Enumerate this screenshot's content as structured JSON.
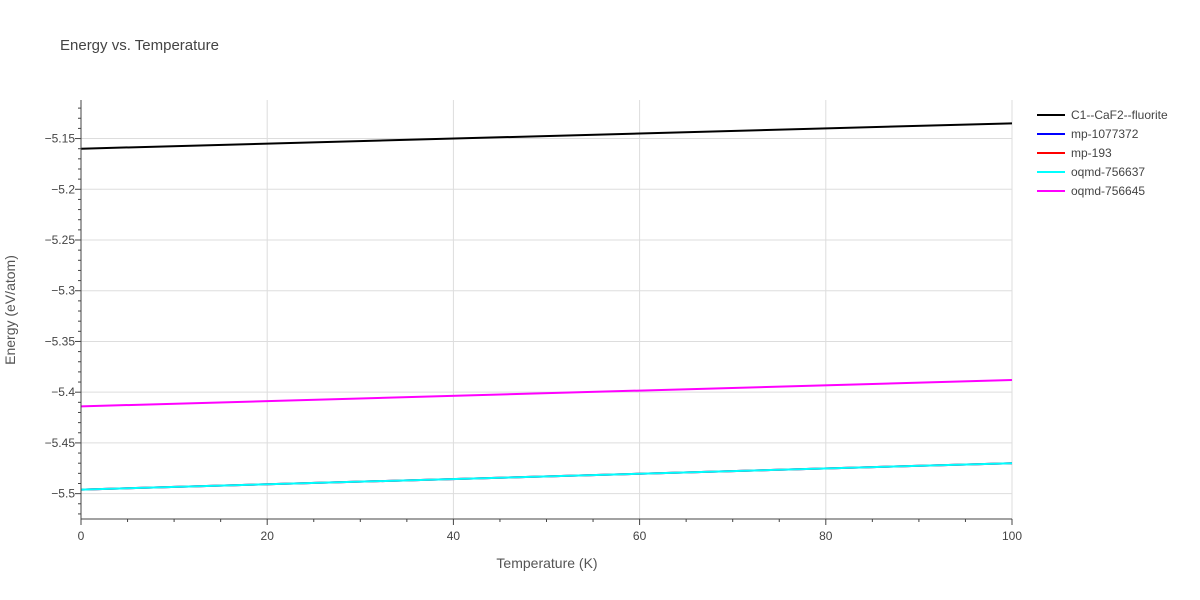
{
  "chart_data": {
    "type": "line",
    "title": "Energy vs. Temperature",
    "xlabel": "Temperature (K)",
    "ylabel": "Energy (eV/atom)",
    "xlim": [
      0,
      100
    ],
    "ylim": [
      -5.525,
      -5.112
    ],
    "x_ticks": [
      0,
      20,
      40,
      60,
      80,
      100
    ],
    "y_ticks": [
      -5.15,
      -5.2,
      -5.25,
      -5.3,
      -5.35,
      -5.4,
      -5.45,
      -5.5
    ],
    "y_tick_labels": [
      "−5.15",
      "−5.2",
      "−5.25",
      "−5.3",
      "−5.35",
      "−5.4",
      "−5.45",
      "−5.5"
    ],
    "grid": true,
    "legend_position": "top-right",
    "series": [
      {
        "name": "C1--CaF2--fluorite",
        "color": "#000000",
        "x": [
          0,
          100
        ],
        "y": [
          -5.16,
          -5.135
        ]
      },
      {
        "name": "mp-1077372",
        "color": "#0000ff",
        "x": [
          0,
          100
        ],
        "y": [
          -5.496,
          -5.47
        ]
      },
      {
        "name": "mp-193",
        "color": "#ff0000",
        "x": [
          0,
          100
        ],
        "y": [
          -5.496,
          -5.47
        ]
      },
      {
        "name": "oqmd-756637",
        "color": "#00ffff",
        "x": [
          0,
          100
        ],
        "y": [
          -5.496,
          -5.47
        ]
      },
      {
        "name": "oqmd-756645",
        "color": "#ff00ff",
        "x": [
          0,
          100
        ],
        "y": [
          -5.414,
          -5.388
        ]
      }
    ]
  }
}
